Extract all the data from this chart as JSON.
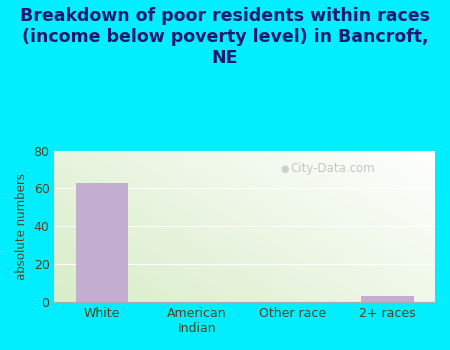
{
  "title": "Breakdown of poor residents within races\n(income below poverty level) in Bancroft,\nNE",
  "categories": [
    "White",
    "American\nIndian",
    "Other race",
    "2+ races"
  ],
  "values": [
    63,
    0,
    0,
    3
  ],
  "bar_color": "#c4aed0",
  "ylabel": "absolute numbers",
  "ylim": [
    0,
    80
  ],
  "yticks": [
    0,
    20,
    40,
    60,
    80
  ],
  "bg_outer": "#00eeff",
  "bg_plot_left": "#d8edc8",
  "bg_plot_right": "#f8faf5",
  "title_color": "#1a1a6e",
  "axis_color": "#5a3e1b",
  "grid_color": "#e8f0e0",
  "watermark": "City-Data.com",
  "title_fontsize": 12.5
}
